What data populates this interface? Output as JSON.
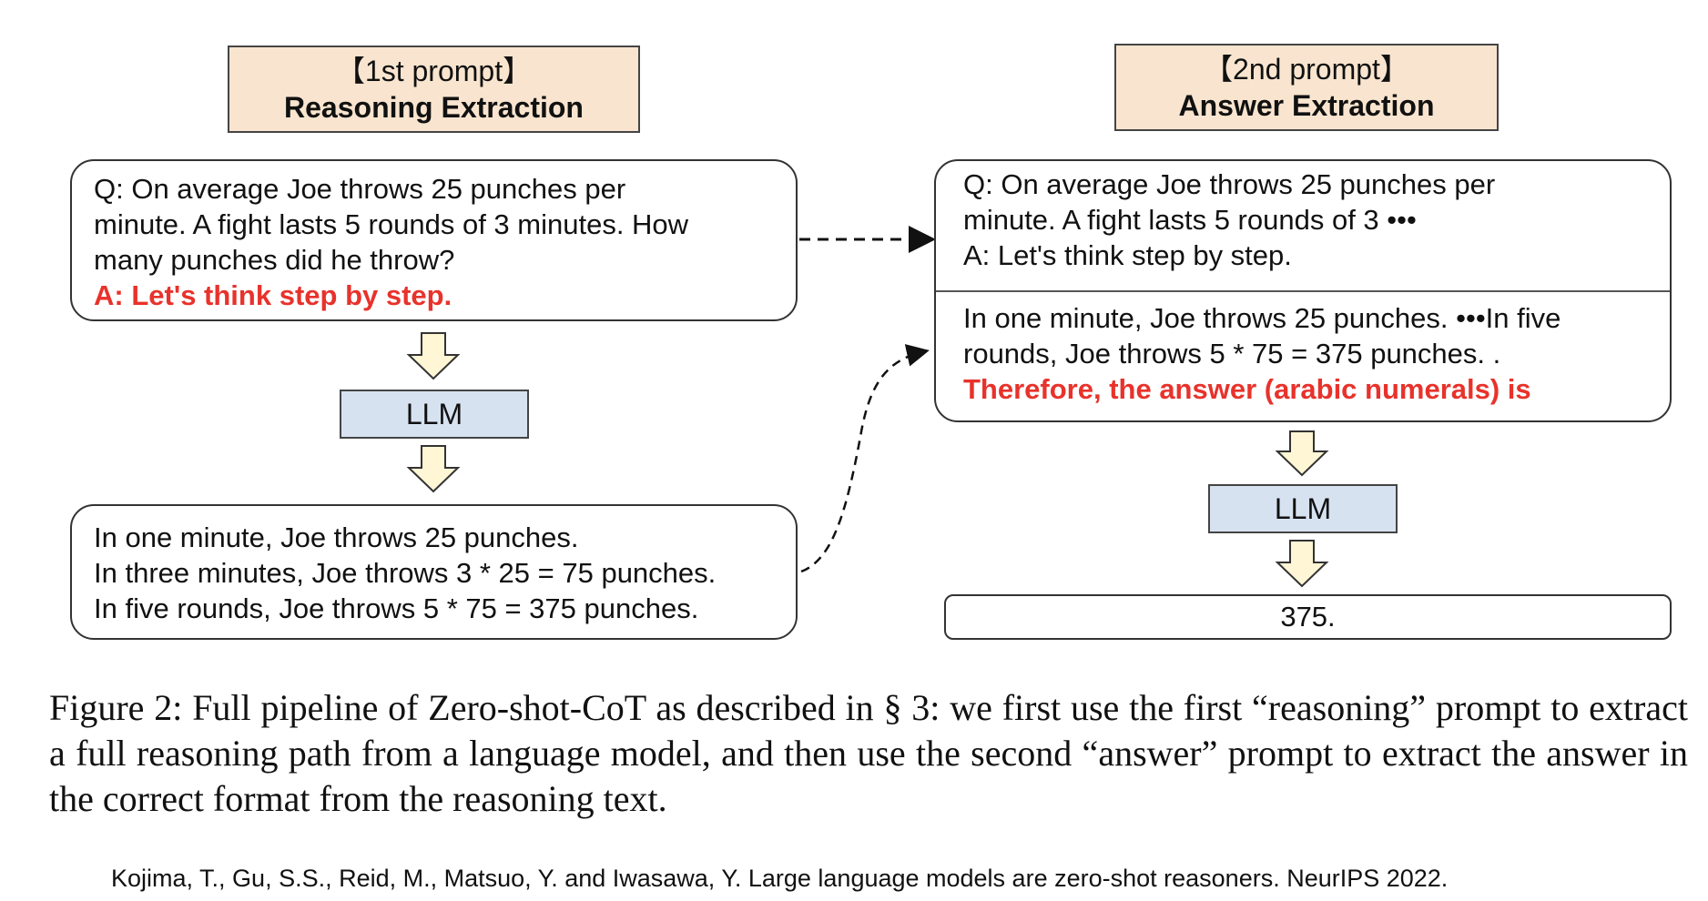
{
  "left": {
    "header": {
      "line1": "【1st prompt】",
      "line2": "Reasoning Extraction"
    },
    "question": [
      "Q: On average Joe throws 25 punches per",
      "minute.  A fight lasts 5 rounds of 3 minutes.  How",
      "many punches did he throw?"
    ],
    "trigger": "A: Let's think step by step.",
    "llm": "LLM",
    "output": [
      "In one minute, Joe throws 25 punches.",
      "In three minutes, Joe throws 3 * 25 = 75 punches.",
      "In five rounds, Joe throws 5 * 75 = 375 punches."
    ]
  },
  "right": {
    "header": {
      "line1": "【2nd prompt】",
      "line2": "Answer Extraction"
    },
    "question": [
      "Q: On average Joe throws 25 punches per",
      "minute.  A fight lasts 5 rounds of 3 •••",
      "A: Let's think step by step."
    ],
    "reasoning": [
      "In one minute, Joe throws 25 punches. •••In five",
      "rounds, Joe throws 5 * 75 = 375 punches. ."
    ],
    "trigger": "Therefore, the answer (arabic numerals) is",
    "llm": "LLM",
    "answer": "375."
  },
  "caption": "Figure 2: Full pipeline of Zero-shot-CoT as described in § 3: we first use the first “reasoning” prompt to extract a full reasoning path from a language model, and then use the second “answer” prompt to extract the answer in the correct format from the reasoning text.",
  "citation": "Kojima, T., Gu, S.S., Reid, M., Matsuo, Y. and Iwasawa, Y. Large language models are zero-shot reasoners. NeurIPS 2022.",
  "colors": {
    "header_fill": "#f9e5cf",
    "llm_fill": "#d7e2f1",
    "trigger_red": "#e8322b",
    "arrow_fill": "#fff6d5"
  }
}
